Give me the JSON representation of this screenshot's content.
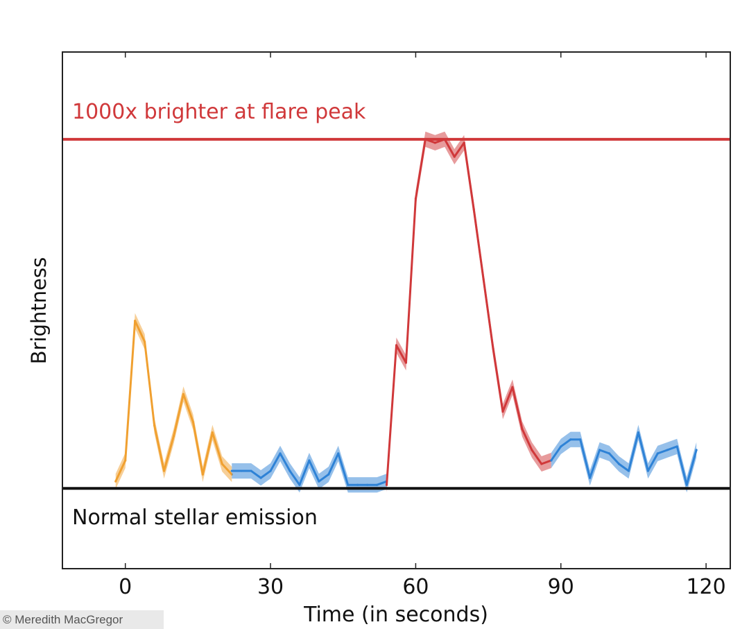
{
  "chart_data": {
    "type": "line",
    "xlabel": "Time (in seconds)",
    "ylabel": "Brightness",
    "xlim": [
      -13,
      125
    ],
    "ylim": [
      -23,
      125
    ],
    "x_ticks": [
      0,
      30,
      60,
      90,
      120
    ],
    "grid": false,
    "reference_lines": [
      {
        "label": "1000x brighter at flare peak",
        "y": 100,
        "color": "#d0383a"
      },
      {
        "label": "Normal stellar emission",
        "y": 0,
        "color": "#111111"
      }
    ],
    "series": [
      {
        "color": "#f0a030",
        "x": [
          -2,
          0,
          2,
          4,
          6,
          8,
          10,
          12,
          14,
          16,
          18,
          20,
          22
        ],
        "y": [
          2,
          8,
          48,
          42,
          18,
          5,
          15,
          27,
          19,
          4,
          16,
          7,
          4
        ]
      },
      {
        "color": "#2e82d6",
        "x": [
          22,
          24,
          26,
          28,
          30,
          32,
          34,
          36,
          38,
          40,
          42,
          44,
          46,
          48,
          50,
          52,
          54
        ],
        "y": [
          5,
          5,
          5,
          3,
          5,
          10,
          5,
          1,
          8,
          2,
          4,
          10,
          1,
          1,
          1,
          1,
          2
        ]
      },
      {
        "color": "#d0383a",
        "x": [
          54,
          56,
          58,
          60,
          62,
          64,
          66,
          68,
          70,
          72,
          74,
          76,
          78,
          80,
          82,
          84,
          86,
          88
        ],
        "y": [
          1,
          41,
          36,
          83,
          100,
          99,
          100,
          95,
          99,
          80,
          60,
          40,
          22,
          29,
          17,
          11,
          7,
          8
        ]
      },
      {
        "color": "#2e82d6",
        "x": [
          88,
          90,
          92,
          94,
          96,
          98,
          100,
          102,
          104,
          106,
          108,
          110,
          112,
          114,
          116,
          118
        ],
        "y": [
          8,
          12,
          14,
          14,
          3,
          11,
          10,
          7,
          5,
          16,
          5,
          10,
          11,
          12,
          1,
          11
        ]
      }
    ]
  },
  "credit": "© Meredith MacGregor"
}
